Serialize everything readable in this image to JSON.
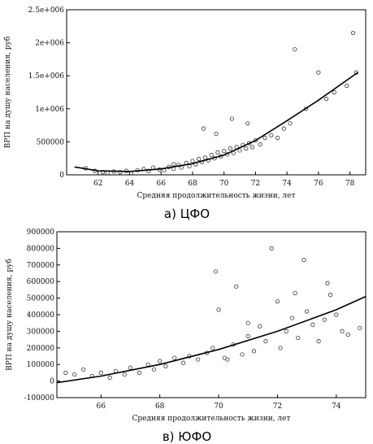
{
  "chart_data": [
    {
      "type": "scatter",
      "caption": "а) ЦФО",
      "xlabel": "Средняя продолжительность жизни, лет",
      "ylabel": "ВРП на душу населения, руб",
      "xlim": [
        60,
        79
      ],
      "ylim": [
        0,
        2500000
      ],
      "x_ticks": [
        62,
        64,
        66,
        68,
        70,
        72,
        74,
        76,
        78
      ],
      "y_ticks": [
        {
          "value": 0,
          "label": "0"
        },
        {
          "value": 500000,
          "label": "500000"
        },
        {
          "value": 1000000,
          "label": "1e+006"
        },
        {
          "value": 1500000,
          "label": "1.5e+006"
        },
        {
          "value": 2000000,
          "label": "2e+006"
        },
        {
          "value": 2500000,
          "label": "2.5e+006"
        }
      ],
      "grid": false,
      "points": [
        [
          61.2,
          100000
        ],
        [
          61.8,
          60000
        ],
        [
          62.3,
          40000
        ],
        [
          62.6,
          30000
        ],
        [
          63.0,
          50000
        ],
        [
          63.4,
          40000
        ],
        [
          63.8,
          60000
        ],
        [
          64.1,
          30000
        ],
        [
          64.5,
          70000
        ],
        [
          64.9,
          90000
        ],
        [
          65.2,
          60000
        ],
        [
          65.5,
          110000
        ],
        [
          65.9,
          80000
        ],
        [
          66.2,
          70000
        ],
        [
          66.5,
          120000
        ],
        [
          66.8,
          90000
        ],
        [
          67.1,
          150000
        ],
        [
          67.3,
          110000
        ],
        [
          67.6,
          180000
        ],
        [
          67.8,
          130000
        ],
        [
          68.0,
          210000
        ],
        [
          68.2,
          160000
        ],
        [
          68.4,
          240000
        ],
        [
          68.6,
          190000
        ],
        [
          68.8,
          260000
        ],
        [
          69.0,
          220000
        ],
        [
          69.2,
          300000
        ],
        [
          69.4,
          250000
        ],
        [
          69.6,
          340000
        ],
        [
          69.8,
          280000
        ],
        [
          70.0,
          360000
        ],
        [
          70.2,
          310000
        ],
        [
          70.4,
          400000
        ],
        [
          70.6,
          330000
        ],
        [
          70.8,
          420000
        ],
        [
          71.0,
          370000
        ],
        [
          71.2,
          450000
        ],
        [
          71.4,
          400000
        ],
        [
          71.6,
          480000
        ],
        [
          71.8,
          420000
        ],
        [
          72.0,
          520000
        ],
        [
          72.3,
          460000
        ],
        [
          72.6,
          560000
        ],
        [
          73.0,
          600000
        ],
        [
          73.4,
          560000
        ],
        [
          73.8,
          700000
        ],
        [
          74.2,
          780000
        ],
        [
          74.5,
          1900000
        ],
        [
          75.2,
          1000000
        ],
        [
          76.0,
          1550000
        ],
        [
          76.5,
          1150000
        ],
        [
          77.0,
          1250000
        ],
        [
          77.8,
          1350000
        ],
        [
          78.2,
          2150000
        ],
        [
          78.4,
          1550000
        ],
        [
          69.5,
          620000
        ],
        [
          70.5,
          850000
        ],
        [
          68.7,
          700000
        ],
        [
          71.5,
          780000
        ],
        [
          66.8,
          160000
        ]
      ],
      "fit": [
        [
          60.5,
          120000
        ],
        [
          62,
          60000
        ],
        [
          64,
          50000
        ],
        [
          66,
          90000
        ],
        [
          68,
          170000
        ],
        [
          70,
          300000
        ],
        [
          72,
          520000
        ],
        [
          74,
          820000
        ],
        [
          76,
          1130000
        ],
        [
          78.5,
          1550000
        ]
      ]
    },
    {
      "type": "scatter",
      "caption": "в) ЮФО",
      "xlabel": "Средняя продолжительность жизни, лет",
      "ylabel": "ВРП на душу населения, руб",
      "xlim": [
        64.5,
        75
      ],
      "ylim": [
        -100000,
        900000
      ],
      "x_ticks": [
        66,
        68,
        70,
        72,
        74
      ],
      "y_ticks": [
        {
          "value": -100000,
          "label": "-100000"
        },
        {
          "value": 0,
          "label": "0"
        },
        {
          "value": 100000,
          "label": "100000"
        },
        {
          "value": 200000,
          "label": "200000"
        },
        {
          "value": 300000,
          "label": "300000"
        },
        {
          "value": 400000,
          "label": "400000"
        },
        {
          "value": 500000,
          "label": "500000"
        },
        {
          "value": 600000,
          "label": "600000"
        },
        {
          "value": 700000,
          "label": "700000"
        },
        {
          "value": 800000,
          "label": "800000"
        },
        {
          "value": 900000,
          "label": "900000"
        }
      ],
      "grid": false,
      "points": [
        [
          64.8,
          50000
        ],
        [
          65.1,
          40000
        ],
        [
          65.4,
          70000
        ],
        [
          65.7,
          30000
        ],
        [
          66.0,
          50000
        ],
        [
          66.3,
          20000
        ],
        [
          66.5,
          60000
        ],
        [
          66.8,
          40000
        ],
        [
          67.0,
          80000
        ],
        [
          67.3,
          50000
        ],
        [
          67.6,
          100000
        ],
        [
          67.8,
          70000
        ],
        [
          68.0,
          120000
        ],
        [
          68.2,
          90000
        ],
        [
          68.5,
          140000
        ],
        [
          68.8,
          110000
        ],
        [
          69.0,
          150000
        ],
        [
          69.3,
          130000
        ],
        [
          69.6,
          170000
        ],
        [
          69.8,
          200000
        ],
        [
          69.9,
          660000
        ],
        [
          70.0,
          430000
        ],
        [
          70.2,
          140000
        ],
        [
          70.5,
          220000
        ],
        [
          70.6,
          570000
        ],
        [
          70.8,
          160000
        ],
        [
          71.0,
          270000
        ],
        [
          71.2,
          180000
        ],
        [
          71.4,
          330000
        ],
        [
          71.6,
          240000
        ],
        [
          71.8,
          800000
        ],
        [
          72.0,
          480000
        ],
        [
          72.1,
          200000
        ],
        [
          72.3,
          300000
        ],
        [
          72.5,
          380000
        ],
        [
          72.7,
          260000
        ],
        [
          72.9,
          730000
        ],
        [
          73.0,
          420000
        ],
        [
          73.2,
          340000
        ],
        [
          73.4,
          240000
        ],
        [
          73.6,
          370000
        ],
        [
          73.8,
          520000
        ],
        [
          74.0,
          400000
        ],
        [
          74.2,
          300000
        ],
        [
          74.4,
          280000
        ],
        [
          74.8,
          320000
        ],
        [
          73.7,
          590000
        ],
        [
          72.6,
          530000
        ],
        [
          71.0,
          350000
        ],
        [
          70.3,
          130000
        ]
      ],
      "fit": [
        [
          64.5,
          -10000
        ],
        [
          66,
          30000
        ],
        [
          68,
          100000
        ],
        [
          70,
          190000
        ],
        [
          72,
          300000
        ],
        [
          74,
          430000
        ],
        [
          75,
          510000
        ]
      ]
    }
  ]
}
